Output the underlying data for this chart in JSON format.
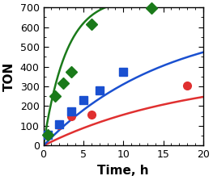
{
  "title": "",
  "xlabel": "Time, h",
  "ylabel": "TON",
  "xlim": [
    0,
    20
  ],
  "ylim": [
    0,
    700
  ],
  "xticks": [
    0,
    5,
    10,
    15,
    20
  ],
  "yticks": [
    0,
    100,
    200,
    300,
    400,
    500,
    600,
    700
  ],
  "red_x": [
    0.5,
    2.0,
    3.5,
    6.0,
    18.0
  ],
  "red_y": [
    50,
    105,
    150,
    155,
    305
  ],
  "blue_x": [
    0.5,
    2.0,
    3.5,
    5.0,
    7.0,
    10.0
  ],
  "blue_y": [
    55,
    110,
    175,
    230,
    280,
    375
  ],
  "green_x": [
    0.5,
    1.5,
    2.5,
    3.5,
    6.0,
    13.5
  ],
  "green_y": [
    55,
    250,
    315,
    375,
    615,
    695
  ],
  "red_fit_params": [
    370,
    0.055
  ],
  "blue_fit_params": [
    650,
    0.065
  ],
  "green_fit_params": [
    750,
    0.35
  ],
  "red_color": "#e03030",
  "blue_color": "#1a50d0",
  "green_color": "#1a7a1a",
  "marker_size": 7,
  "line_width": 1.8,
  "tick_fontsize": 9,
  "label_fontsize": 11,
  "fig_width": 2.63,
  "fig_height": 2.23,
  "dpi": 100
}
